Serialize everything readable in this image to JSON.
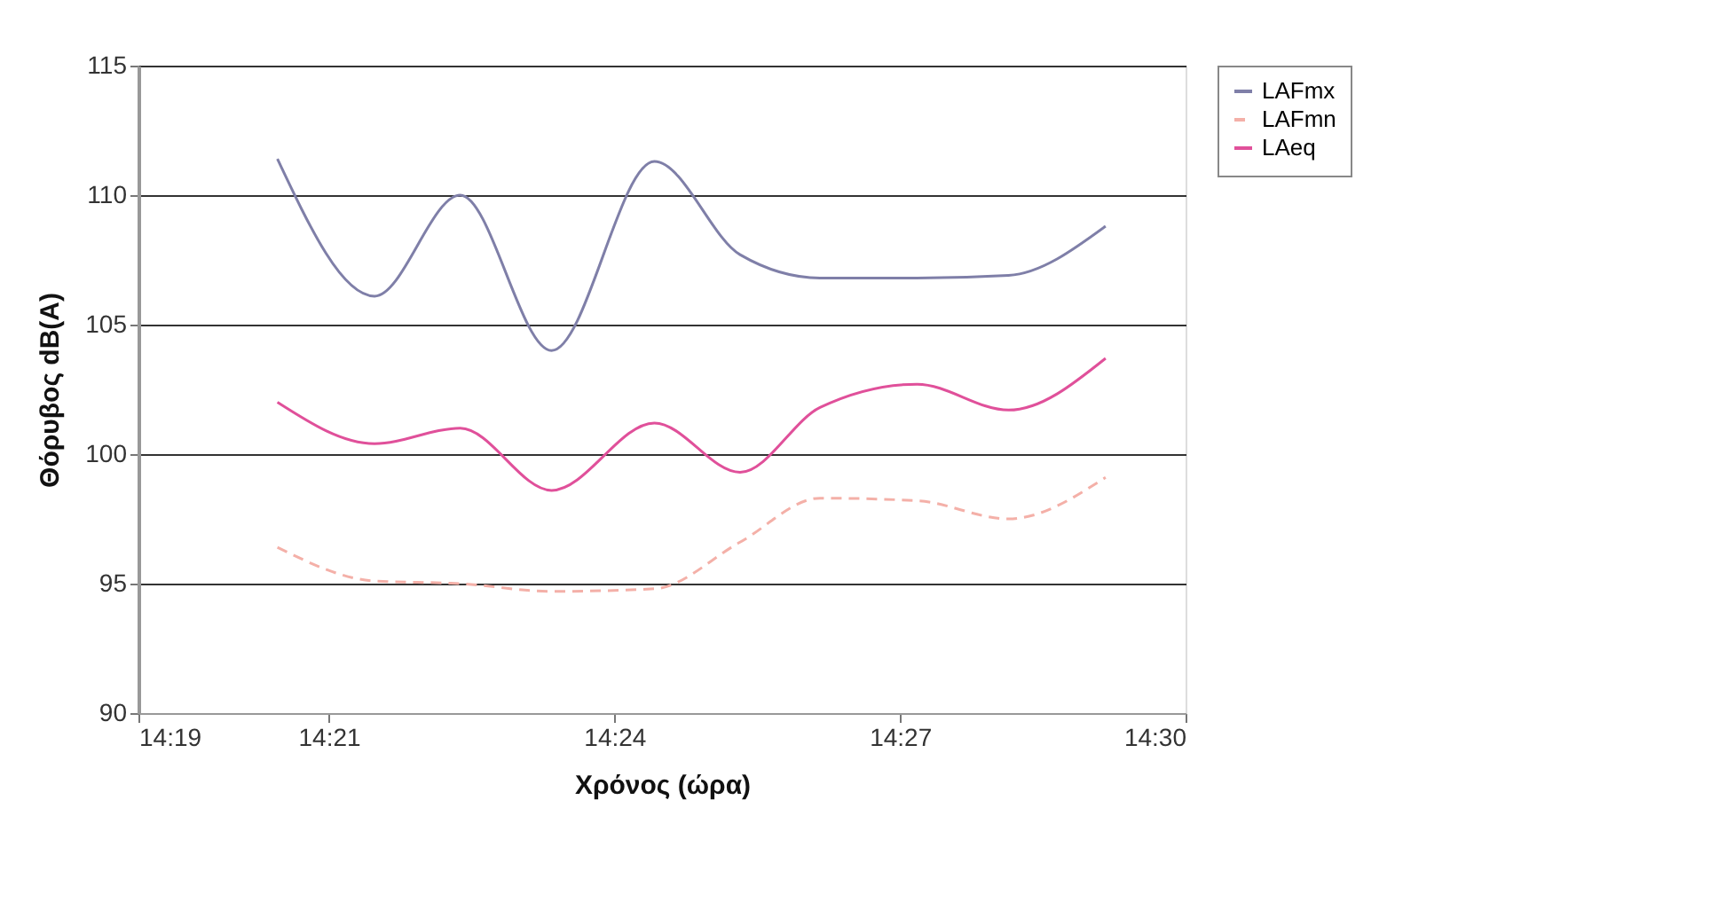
{
  "chart_data": {
    "type": "line",
    "xlabel": "Χρόνος (ώρα)",
    "ylabel": "Θόρυβος dB(A)",
    "x": [
      14.341,
      14.358,
      14.373,
      14.389,
      14.407,
      14.422,
      14.436,
      14.453,
      14.469,
      14.486
    ],
    "series": [
      {
        "name": "LAFmx",
        "color": "#7f7fa8",
        "line_style": "solid",
        "values": [
          111.4,
          106.1,
          110.0,
          104.0,
          111.3,
          107.7,
          106.8,
          106.8,
          106.9,
          108.8
        ]
      },
      {
        "name": "LAFmn",
        "color": "#f4b0a8",
        "line_style": "dashed",
        "values": [
          96.4,
          95.1,
          95.0,
          94.7,
          94.8,
          96.6,
          98.3,
          98.2,
          97.5,
          99.1
        ]
      },
      {
        "name": "LAeq",
        "color": "#e0509a",
        "line_style": "solid",
        "values": [
          102.0,
          100.4,
          101.0,
          98.6,
          101.2,
          99.3,
          101.8,
          102.7,
          101.7,
          103.7
        ]
      }
    ],
    "xlim": [
      14.316667,
      14.5
    ],
    "xticks": [
      {
        "value": 14.316667,
        "label": "14:19"
      },
      {
        "value": 14.35,
        "label": "14:21"
      },
      {
        "value": 14.4,
        "label": "14:24"
      },
      {
        "value": 14.45,
        "label": "14:27"
      },
      {
        "value": 14.5,
        "label": "14:30"
      }
    ],
    "ylim": [
      90,
      115
    ],
    "yticks": [
      90,
      95,
      100,
      105,
      110,
      115
    ],
    "grid": "y",
    "legend": "right",
    "marker": "none"
  }
}
